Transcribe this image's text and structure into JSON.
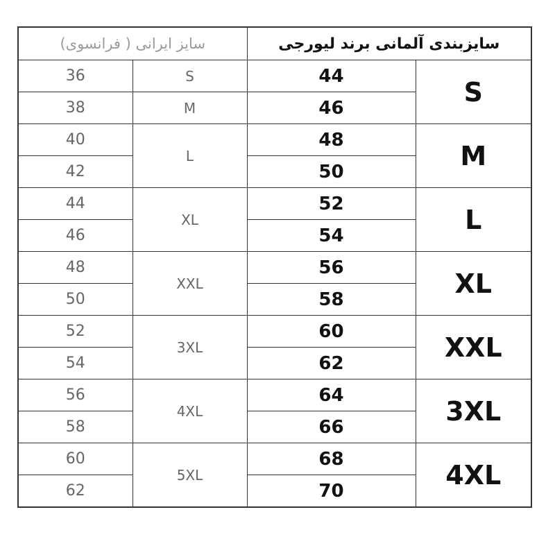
{
  "header": {
    "iranian_french": "سایز ایرانی ( فرانسوی)",
    "german_brand": "سایزبندی آلمانی برند لیورجی"
  },
  "iranian_numbers": [
    "36",
    "38",
    "40",
    "42",
    "44",
    "46",
    "48",
    "50",
    "52",
    "54",
    "56",
    "58",
    "60",
    "62"
  ],
  "iranian_letters": [
    {
      "label": "S",
      "rows": 1
    },
    {
      "label": "M",
      "rows": 1
    },
    {
      "label": "L",
      "rows": 2
    },
    {
      "label": "XL",
      "rows": 2
    },
    {
      "label": "XXL",
      "rows": 2
    },
    {
      "label": "3XL",
      "rows": 2
    },
    {
      "label": "4XL",
      "rows": 2
    },
    {
      "label": "5XL",
      "rows": 2
    }
  ],
  "german_numbers": [
    "44",
    "46",
    "48",
    "50",
    "52",
    "54",
    "56",
    "58",
    "60",
    "62",
    "64",
    "66",
    "68",
    "70"
  ],
  "german_letters": [
    "S",
    "M",
    "L",
    "XL",
    "XXL",
    "3XL",
    "4XL"
  ]
}
